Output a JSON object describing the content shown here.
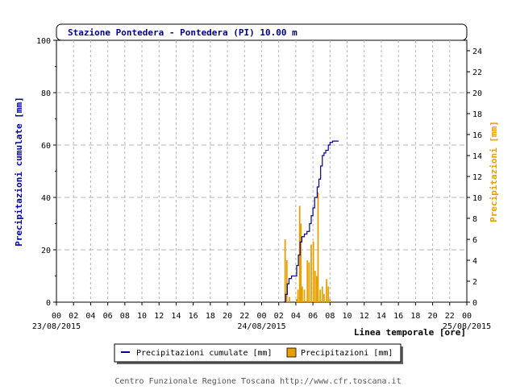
{
  "chart_data": {
    "type": "bar+line",
    "title": "Stazione Pontedera - Pontedera (PI) 10.00 m",
    "xlabel": "Linea temporale [ore]",
    "ylabel_left": "Precipitazioni cumulate [mm]",
    "ylabel_right": "Precipitazioni [mm]",
    "ylim_left": [
      0,
      100
    ],
    "ylim_right": [
      0,
      25
    ],
    "xlim_hours": [
      0,
      48
    ],
    "left_ticks": [
      "0",
      "20",
      "40",
      "60",
      "80",
      "100"
    ],
    "right_ticks": [
      "0",
      "2",
      "4",
      "6",
      "8",
      "10",
      "12",
      "14",
      "16",
      "18",
      "20",
      "22",
      "24"
    ],
    "x_tick_labels": [
      "00",
      "02",
      "04",
      "06",
      "08",
      "10",
      "12",
      "14",
      "16",
      "18",
      "20",
      "22",
      "00",
      "02",
      "04",
      "06",
      "08",
      "10",
      "12",
      "14",
      "16",
      "18",
      "20",
      "22",
      "00"
    ],
    "date_labels": [
      "23/08/2015",
      "24/08/2015",
      "25/08/2015"
    ],
    "grid": true,
    "colors": {
      "cumulative": "#000099",
      "bars": "#e6a000",
      "right_axis_label": "#e6a000",
      "left_axis_label": "#0000aa",
      "title": "#000080"
    },
    "series": [
      {
        "name": "Precipitazioni cumulate [mm]",
        "type": "step-line",
        "axis": "left",
        "points": [
          [
            26.6,
            0
          ],
          [
            26.8,
            3
          ],
          [
            27.0,
            7
          ],
          [
            27.2,
            9
          ],
          [
            27.5,
            10
          ],
          [
            28.0,
            10
          ],
          [
            28.1,
            14
          ],
          [
            28.3,
            18
          ],
          [
            28.5,
            23
          ],
          [
            28.7,
            25
          ],
          [
            29.0,
            26
          ],
          [
            29.3,
            27
          ],
          [
            29.6,
            30
          ],
          [
            29.8,
            33
          ],
          [
            30.0,
            36
          ],
          [
            30.2,
            40
          ],
          [
            30.5,
            44
          ],
          [
            30.7,
            47
          ],
          [
            30.9,
            52
          ],
          [
            31.1,
            56
          ],
          [
            31.3,
            57
          ],
          [
            31.5,
            58
          ],
          [
            31.8,
            60
          ],
          [
            32.0,
            61
          ],
          [
            32.3,
            61.5
          ],
          [
            33.0,
            61.5
          ]
        ]
      },
      {
        "name": "Precipitazioni [mm]",
        "type": "bar",
        "axis": "right",
        "points": [
          [
            26.75,
            6
          ],
          [
            26.95,
            4
          ],
          [
            27.25,
            0.5
          ],
          [
            28.1,
            0.3
          ],
          [
            28.25,
            1.2
          ],
          [
            28.45,
            9.2
          ],
          [
            28.6,
            7.5
          ],
          [
            28.75,
            1.5
          ],
          [
            29.0,
            1.2
          ],
          [
            29.35,
            4.0
          ],
          [
            29.55,
            3.8
          ],
          [
            29.8,
            5.5
          ],
          [
            30.05,
            5.8
          ],
          [
            30.25,
            3.0
          ],
          [
            30.45,
            2.5
          ],
          [
            30.6,
            10.5
          ],
          [
            30.85,
            1.2
          ],
          [
            31.1,
            1.5
          ],
          [
            31.3,
            0.8
          ],
          [
            31.6,
            2.2
          ],
          [
            31.8,
            1.5
          ],
          [
            32.0,
            0.3
          ]
        ]
      }
    ]
  },
  "legend": {
    "items": [
      {
        "label": "Precipitazioni cumulate [mm]",
        "swatch": "line",
        "color": "#000099"
      },
      {
        "label": "Precipitazioni [mm]",
        "swatch": "box",
        "color": "#e6a000"
      }
    ]
  },
  "footer": "Centro Funzionale Regione Toscana http://www.cfr.toscana.it"
}
